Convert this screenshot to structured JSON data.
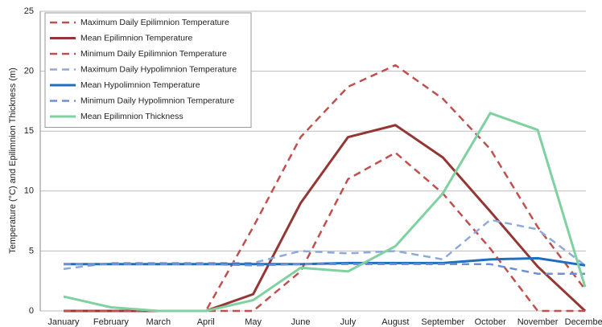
{
  "chart_data": {
    "type": "line",
    "y_label": "Temperature (°C) and Epilimnion Thickness (m)",
    "categories": [
      "January",
      "February",
      "March",
      "April",
      "May",
      "June",
      "July",
      "August",
      "September",
      "October",
      "November",
      "December"
    ],
    "ylim": [
      0,
      25
    ],
    "yticks": [
      0,
      5,
      10,
      15,
      20,
      25
    ],
    "grid": true,
    "legend": "top-left",
    "series": [
      {
        "name": "Maximum Daily Epilimnion Temperature",
        "color": "#c0504d",
        "dashed": true,
        "values": [
          0,
          0,
          0,
          0,
          7,
          14.5,
          18.7,
          20.5,
          17.7,
          13.5,
          7,
          1.8
        ]
      },
      {
        "name": "Mean Epilimnion Temperature",
        "color": "#943634",
        "dashed": false,
        "values": [
          0,
          0,
          0,
          0,
          1.4,
          9,
          14.5,
          15.5,
          12.8,
          8.3,
          3.7,
          0
        ]
      },
      {
        "name": "Minimum Daily Epilimnion Temperature",
        "color": "#c0504d",
        "dashed": true,
        "values": [
          0,
          0,
          0,
          0,
          0,
          3.3,
          11,
          13.2,
          9.8,
          5.2,
          0,
          0
        ]
      },
      {
        "name": "Maximum Daily Hypolimnion Temperature",
        "color": "#8ea9db",
        "dashed": true,
        "values": [
          3.5,
          4,
          4,
          4,
          4,
          5,
          4.8,
          5,
          4.3,
          7.6,
          6.8,
          3.8
        ]
      },
      {
        "name": "Mean Hypolimnion Temperature",
        "color": "#1f6fbf",
        "dashed": false,
        "values": [
          3.9,
          3.9,
          3.9,
          3.9,
          3.9,
          3.9,
          4,
          4,
          4,
          4.3,
          4.4,
          3.8
        ]
      },
      {
        "name": "Minimum Daily Hypolimnion Temperature",
        "color": "#6f8fd6",
        "dashed": true,
        "values": [
          3.9,
          3.9,
          3.9,
          3.9,
          3.8,
          3.9,
          3.9,
          3.9,
          3.9,
          3.9,
          3.1,
          3.1
        ]
      },
      {
        "name": "Mean Epilimnion Thickness",
        "color": "#7fd1a0",
        "dashed": false,
        "values": [
          1.2,
          0.3,
          0,
          0,
          0.9,
          3.6,
          3.3,
          5.4,
          9.8,
          16.5,
          15.1,
          2
        ]
      }
    ]
  }
}
